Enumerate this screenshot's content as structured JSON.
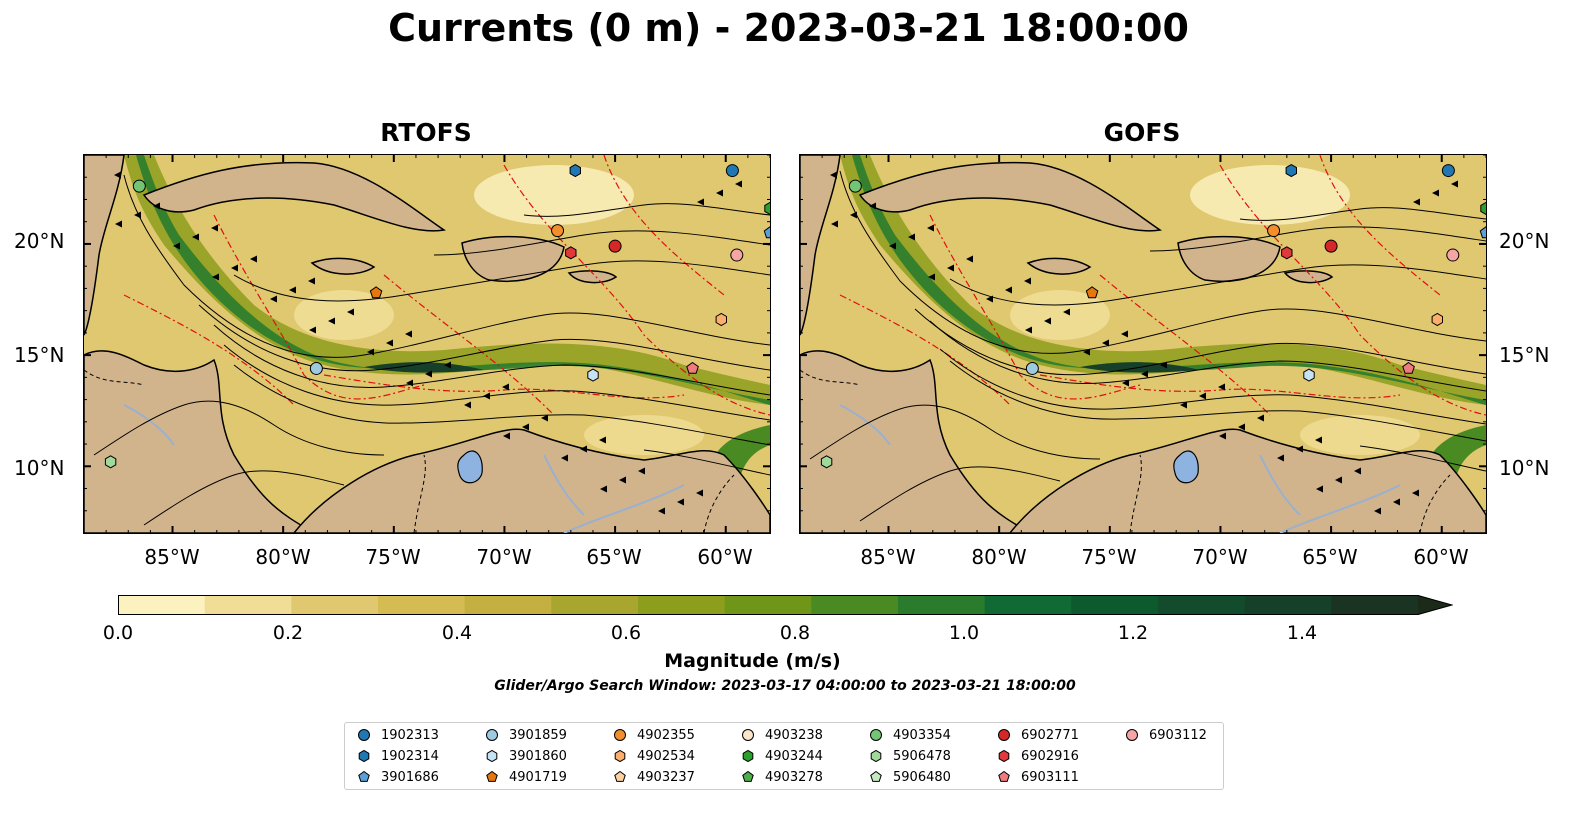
{
  "title": "Currents (0 m) - 2023-03-21 18:00:00",
  "panels": [
    {
      "title": "RTOFS"
    },
    {
      "title": "GOFS"
    }
  ],
  "lat_labels": [
    "20°N",
    "15°N",
    "10°N"
  ],
  "lon_labels": [
    "85°W",
    "80°W",
    "75°W",
    "70°W",
    "65°W",
    "60°W"
  ],
  "colorbar": {
    "label": "Magnitude (m/s)",
    "ticks": [
      "0.0",
      "0.2",
      "0.4",
      "0.6",
      "0.8",
      "1.0",
      "1.2",
      "1.4"
    ],
    "range": [
      0,
      1.5
    ],
    "extend": "max",
    "colors": [
      "#fcf2c0",
      "#f0de96",
      "#e0c870",
      "#d4bc52",
      "#c4b040",
      "#a9a630",
      "#8c9e1c",
      "#6f9619",
      "#4a8a22",
      "#2a7c2c",
      "#116a33",
      "#0d5a2e",
      "#124c2c",
      "#17402a",
      "#1a3322",
      "#1c2a1a"
    ]
  },
  "subtitle": "Glider/Argo Search Window: 2023-03-17 04:00:00 to 2023-03-21 18:00:00",
  "legend": [
    {
      "label": "1902313",
      "marker": "circle",
      "color": "#1f77b4"
    },
    {
      "label": "1902314",
      "marker": "hexagon",
      "color": "#1f77b4"
    },
    {
      "label": "3901686",
      "marker": "pentagon",
      "color": "#5a9fd8"
    },
    {
      "label": "3901859",
      "marker": "circle",
      "color": "#9ecae1"
    },
    {
      "label": "3901860",
      "marker": "hexagon",
      "color": "#c6e2f5"
    },
    {
      "label": "4901719",
      "marker": "pentagon",
      "color": "#e6770e"
    },
    {
      "label": "4902355",
      "marker": "circle",
      "color": "#f28e2b"
    },
    {
      "label": "4902534",
      "marker": "hexagon",
      "color": "#fdae6b"
    },
    {
      "label": "4903237",
      "marker": "pentagon",
      "color": "#fdd0a2"
    },
    {
      "label": "4903238",
      "marker": "circle",
      "color": "#fde5cc"
    },
    {
      "label": "4903244",
      "marker": "hexagon",
      "color": "#2ca02c"
    },
    {
      "label": "4903278",
      "marker": "pentagon",
      "color": "#4daf4a"
    },
    {
      "label": "4903354",
      "marker": "circle",
      "color": "#74c476"
    },
    {
      "label": "5906478",
      "marker": "hexagon",
      "color": "#a1d99b"
    },
    {
      "label": "5906480",
      "marker": "pentagon",
      "color": "#c7e9c0"
    },
    {
      "label": "6902771",
      "marker": "circle",
      "color": "#d62728"
    },
    {
      "label": "6902916",
      "marker": "hexagon",
      "color": "#e0393b"
    },
    {
      "label": "6903111",
      "marker": "pentagon",
      "color": "#ef7b7f"
    },
    {
      "label": "6903112",
      "marker": "circle",
      "color": "#f6a5a5"
    }
  ],
  "float_positions": [
    {
      "id": "1902313",
      "lon": -59.7,
      "lat": 23.3
    },
    {
      "id": "1902314",
      "lon": -66.8,
      "lat": 23.3
    },
    {
      "id": "3901686",
      "lon": -58.0,
      "lat": 20.5
    },
    {
      "id": "3901859",
      "lon": -78.5,
      "lat": 14.4
    },
    {
      "id": "3901860",
      "lon": -66.0,
      "lat": 14.1
    },
    {
      "id": "4901719",
      "lon": -75.8,
      "lat": 17.8
    },
    {
      "id": "4902355",
      "lon": -67.6,
      "lat": 20.6
    },
    {
      "id": "4903354",
      "lon": -86.5,
      "lat": 22.6
    },
    {
      "id": "5906478",
      "lon": -87.8,
      "lat": 10.2
    },
    {
      "id": "4903244",
      "lon": -58.0,
      "lat": 21.6
    },
    {
      "id": "6902771",
      "lon": -65.0,
      "lat": 19.9
    },
    {
      "id": "6902916",
      "lon": -67.0,
      "lat": 19.6
    },
    {
      "id": "6903111",
      "lon": -61.5,
      "lat": 14.4
    },
    {
      "id": "6903112",
      "lon": -59.5,
      "lat": 19.5
    },
    {
      "id": "4902534",
      "lon": -60.2,
      "lat": 16.6
    }
  ],
  "map_extent": {
    "lon": [
      -89,
      -58
    ],
    "lat": [
      7,
      24
    ]
  }
}
